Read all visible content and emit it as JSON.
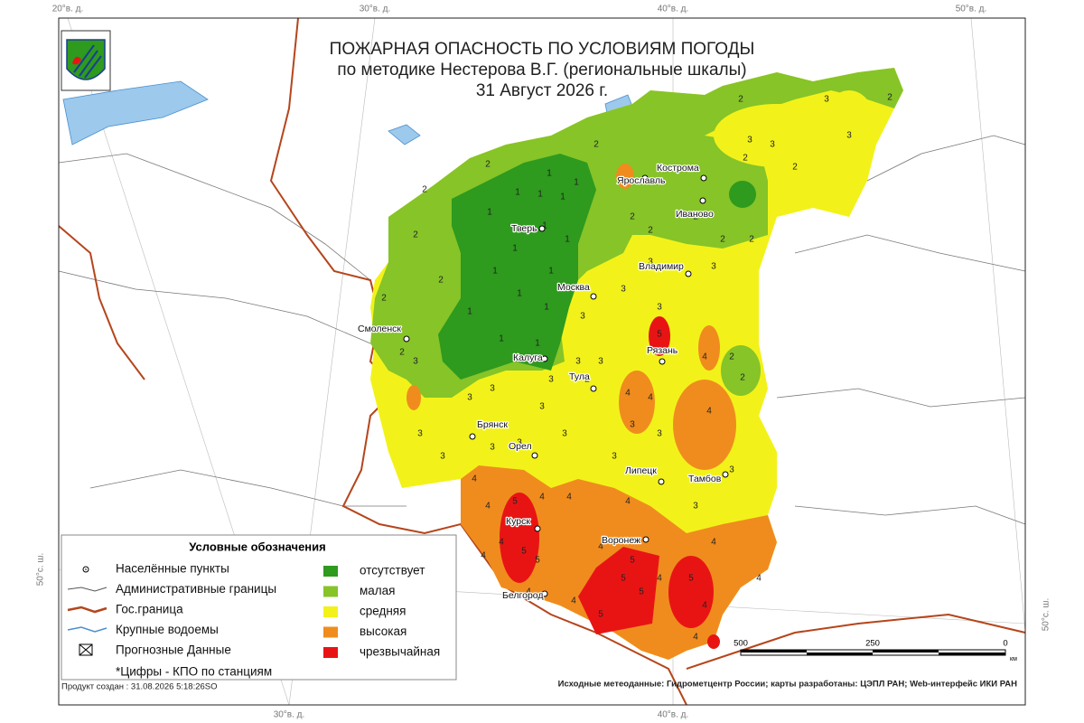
{
  "title": {
    "line1": "ПОЖАРНАЯ ОПАСНОСТЬ ПО УСЛОВИЯМ ПОГОДЫ",
    "line2": "по методике Нестерова В.Г. (региональные шкалы)",
    "line3": "31 Август 2026 г."
  },
  "grid_labels": {
    "top": [
      "20°в. д.",
      "30°в. д.",
      "40°в. д.",
      "50°в. д."
    ],
    "bottom": [
      "30°в. д.",
      "40°в. д."
    ],
    "left": "50°с. ш.",
    "right": "50°с. ш."
  },
  "cities": [
    "Тверь",
    "Ярославль",
    "Кострома",
    "Иваново",
    "Владимир",
    "Москва",
    "Смоленск",
    "Калуга",
    "Тула",
    "Рязань",
    "Брянск",
    "Орел",
    "Липецк",
    "Тамбов",
    "Курск",
    "Воронеж",
    "Белгород"
  ],
  "legend": {
    "title": "Условные обозначения",
    "symbols": [
      "Населённые пункты",
      "Административные границы",
      "Гос.граница",
      "Крупные водоемы",
      "Прогнозные Данные"
    ],
    "classes": [
      {
        "label": "отсутствует",
        "color": "#2e9a1e"
      },
      {
        "label": "малая",
        "color": "#86c428"
      },
      {
        "label": "средняя",
        "color": "#f2f21a"
      },
      {
        "label": "высокая",
        "color": "#f08c1e"
      },
      {
        "label": "чрезвычайная",
        "color": "#e81414"
      }
    ],
    "note": "*Цифры - КПО по станциям"
  },
  "scale": {
    "ticks": [
      500,
      250,
      0
    ],
    "unit": "км"
  },
  "footer": {
    "created": "Продукт создан : 31.08.2026 5:18:26SO",
    "sources": "Исходные метеоданные: Гидрометцентр России; карты разработаны: ЦЭПЛ РАН; Web-интерфейс ИКИ РАН"
  },
  "stations": [
    1,
    1,
    1,
    1,
    1,
    1,
    1,
    1,
    1,
    1,
    1,
    1,
    1,
    1,
    1,
    1,
    2,
    2,
    2,
    2,
    2,
    2,
    2,
    2,
    2,
    2,
    2,
    2,
    2,
    2,
    2,
    2,
    2,
    2,
    2,
    3,
    3,
    3,
    3,
    3,
    3,
    3,
    3,
    3,
    3,
    3,
    3,
    3,
    3,
    3,
    3,
    3,
    3,
    3,
    3,
    3,
    3,
    3,
    3,
    3,
    3,
    4,
    4,
    4,
    4,
    4,
    4,
    4,
    4,
    4,
    4,
    4,
    4,
    4,
    4,
    4,
    4,
    4,
    4,
    4,
    5,
    5,
    5,
    5,
    5,
    5,
    5,
    5,
    5
  ]
}
